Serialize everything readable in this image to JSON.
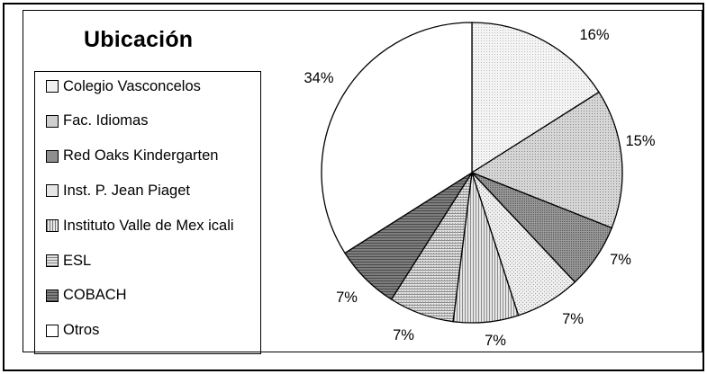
{
  "chart_data": {
    "type": "pie",
    "title": "Ubicación",
    "categories": [
      "Colegio Vasconcelos",
      "Fac. Idiomas",
      "Red Oaks Kindergarten",
      "Inst. P. Jean Piaget",
      "Instituto Valle de Mex icali",
      "ESL",
      "COBACH",
      "Otros"
    ],
    "values": [
      16,
      15,
      7,
      7,
      7,
      7,
      7,
      34
    ],
    "labels": [
      "16%",
      "15%",
      "7%",
      "7%",
      "7%",
      "7%",
      "7%",
      "34%"
    ],
    "legend_position": "left"
  },
  "colors": {
    "Colegio Vasconcelos": "#f1f1f1",
    "Fac. Idiomas": "#cfcfcf",
    "Red Oaks Kindergarten": "#8f8f8f",
    "Inst. P. Jean Piaget": "#e6e6e6",
    "Instituto Valle de Mex icali": "#d3d3d3",
    "ESL": "#d9d9d9",
    "COBACH": "#777777",
    "Otros": "#ffffff"
  }
}
